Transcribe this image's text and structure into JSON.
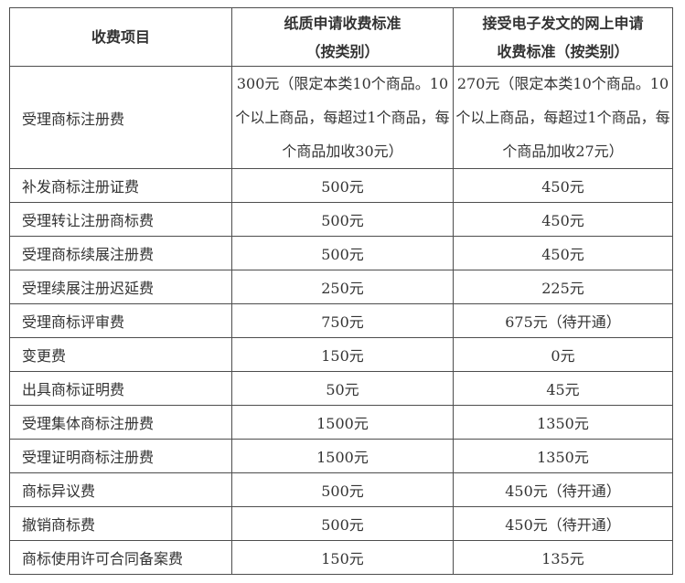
{
  "page": {
    "background": "#ffffff",
    "border_color": "#4d4d4d",
    "text_color": "#333333"
  },
  "table": {
    "headers": [
      {
        "lines": [
          "收费项目"
        ]
      },
      {
        "lines": [
          "纸质申请收费标准",
          "（按类别）"
        ]
      },
      {
        "lines": [
          "接受电子发文的网上申请",
          "收费标准（按类别）"
        ]
      }
    ],
    "rows": [
      {
        "item": "受理商标注册费",
        "paper": "300元（限定本类10个商品。10个以上商品，每超过1个商品，每个商品加收30元）",
        "online": "270元（限定本类10个商品。10个以上商品，每超过1个商品，每个商品加收27元）"
      },
      {
        "item": "补发商标注册证费",
        "paper": "500元",
        "online": "450元"
      },
      {
        "item": "受理转让注册商标费",
        "paper": "500元",
        "online": "450元"
      },
      {
        "item": "受理商标续展注册费",
        "paper": "500元",
        "online": "450元"
      },
      {
        "item": "受理续展注册迟延费",
        "paper": "250元",
        "online": "225元"
      },
      {
        "item": "受理商标评审费",
        "paper": "750元",
        "online": "675元（待开通）"
      },
      {
        "item": "变更费",
        "paper": "150元",
        "online": "0元"
      },
      {
        "item": "出具商标证明费",
        "paper": "50元",
        "online": "45元"
      },
      {
        "item": "受理集体商标注册费",
        "paper": "1500元",
        "online": "1350元"
      },
      {
        "item": "受理证明商标注册费",
        "paper": "1500元",
        "online": "1350元"
      },
      {
        "item": "商标异议费",
        "paper": "500元",
        "online": "450元（待开通）"
      },
      {
        "item": "撤销商标费",
        "paper": "500元",
        "online": "450元（待开通）"
      },
      {
        "item": "商标使用许可合同备案费",
        "paper": "150元",
        "online": "135元"
      }
    ]
  }
}
